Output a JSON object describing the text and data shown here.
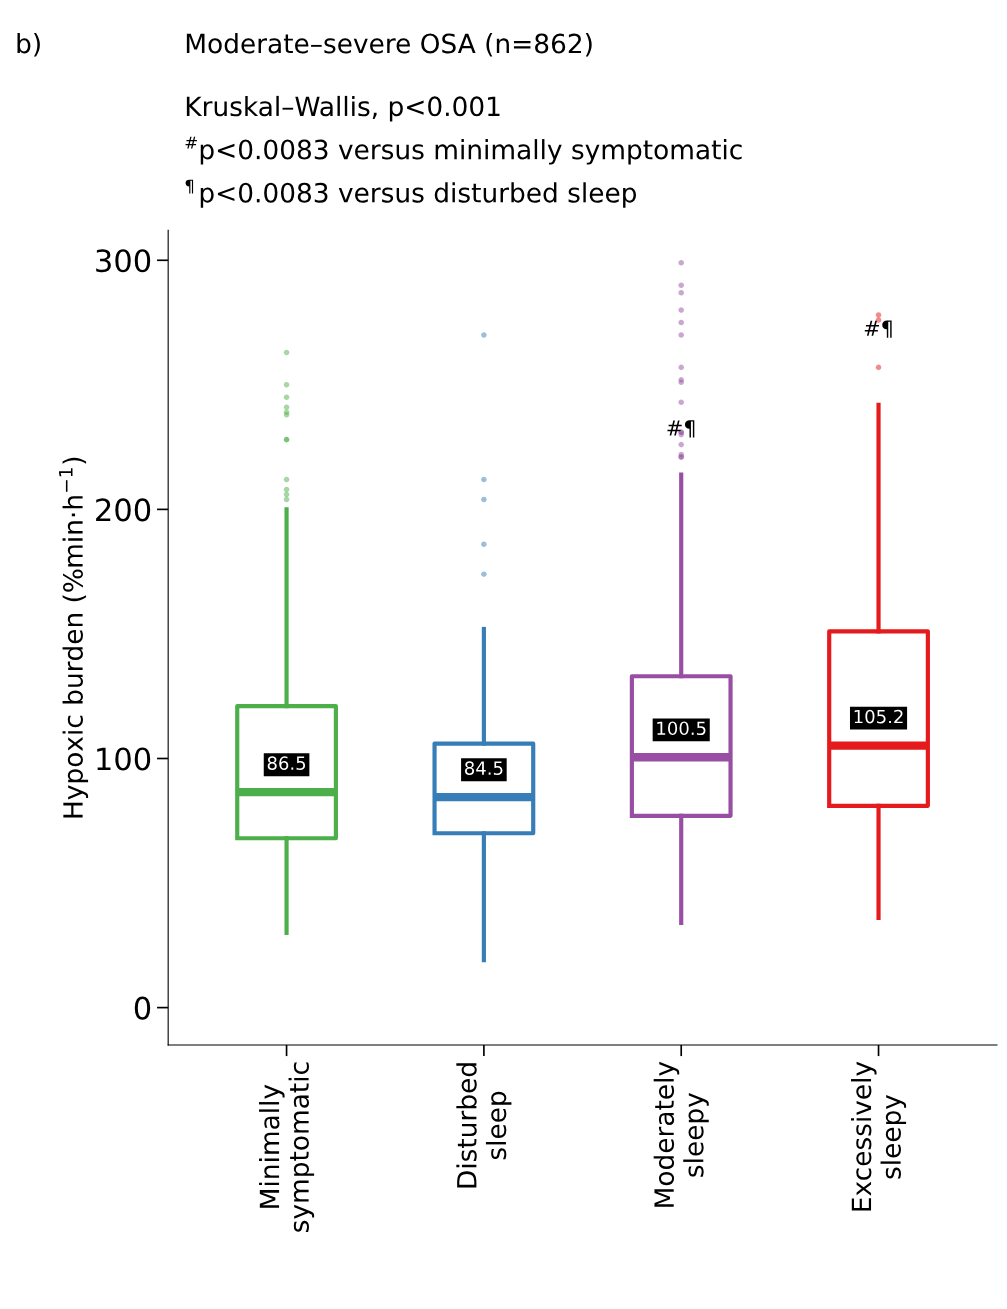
{
  "chart_data": {
    "type": "box",
    "title": "Moderate–severe OSA (n=862)",
    "ylabel": "Hypoxic burden (%min·h$^{−1}$)",
    "categories": [
      "Minimally\nsymptomatic",
      "Disturbed\nsleep",
      "Moderately\nsleepy",
      "Excessively\nsleepy"
    ],
    "colors": [
      "#4daf4a",
      "#377eb8",
      "#984ea3",
      "#e41a1c"
    ],
    "boxes": [
      {
        "low": 30,
        "q1": 68,
        "median": 86.5,
        "q3": 121,
        "high": 200,
        "outliers": [
          263,
          250,
          245,
          241,
          239,
          238,
          228,
          228,
          212,
          208,
          206,
          204
        ]
      },
      {
        "low": 19,
        "q1": 70,
        "median": 84.5,
        "q3": 106,
        "high": 152,
        "outliers": [
          270,
          212,
          204,
          186,
          174
        ]
      },
      {
        "low": 34,
        "q1": 77,
        "median": 100.5,
        "q3": 133,
        "high": 214,
        "outliers": [
          299,
          290,
          287,
          280,
          275,
          270,
          257,
          252,
          251,
          243,
          231,
          231,
          230,
          226,
          222,
          221,
          221
        ]
      },
      {
        "low": 36,
        "q1": 81,
        "median": 105.2,
        "q3": 151,
        "high": 242,
        "outliers": [
          278,
          276,
          257
        ]
      }
    ],
    "value_labels": [
      "86.5",
      "84.5",
      "100.5",
      "105.2"
    ],
    "ylim": [
      -15,
      312
    ],
    "yticks": [
      0,
      100,
      200,
      300
    ],
    "grid": false,
    "annotations": [
      "b)",
      "Kruskal–Wallis, p<0.001",
      "$^{#}$p<0.0083 versus minimally symptomatic",
      "$^{¶}$p<0.0083 versus disturbed sleep",
      "#¶",
      "#¶"
    ]
  }
}
